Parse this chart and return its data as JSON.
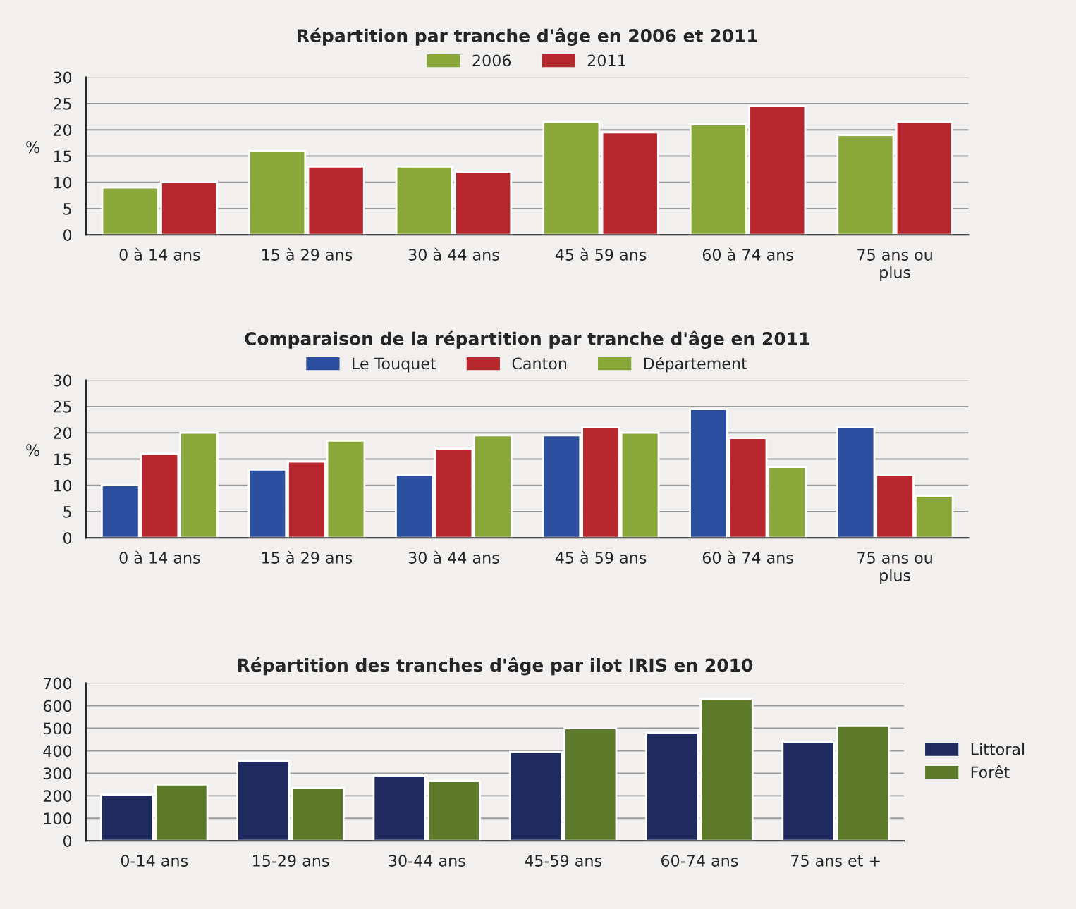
{
  "chart_data": [
    {
      "type": "bar",
      "title": "Répartition par tranche d'âge en 2006 et 2011",
      "ylabel": "%",
      "categories": [
        "0 à 14 ans",
        "15 à 29 ans",
        "30 à 44 ans",
        "45 à 59 ans",
        "60 à 74 ans",
        "75 ans ou\nplus"
      ],
      "series": [
        {
          "name": "2006",
          "color": "#8aa83a",
          "values": [
            9,
            16,
            13,
            21.5,
            21,
            19
          ]
        },
        {
          "name": "2011",
          "color": "#b8262e",
          "values": [
            10,
            13,
            12,
            19.5,
            24.5,
            21.5
          ]
        }
      ],
      "ylim": [
        0,
        30
      ],
      "yticks": [
        0,
        5,
        10,
        15,
        20,
        25,
        30
      ],
      "grid": "y",
      "legend": "top"
    },
    {
      "type": "bar",
      "title": "Comparaison de la répartition par tranche d'âge en 2011",
      "ylabel": "%",
      "categories": [
        "0 à 14 ans",
        "15 à 29 ans",
        "30 à 44 ans",
        "45 à 59 ans",
        "60 à 74 ans",
        "75 ans ou\nplus"
      ],
      "series": [
        {
          "name": "Le Touquet",
          "color": "#2c4e9e",
          "values": [
            10,
            13,
            12,
            19.5,
            24.5,
            21
          ]
        },
        {
          "name": "Canton",
          "color": "#b8262e",
          "values": [
            16,
            14.5,
            17,
            21,
            19,
            12
          ]
        },
        {
          "name": "Département",
          "color": "#8aa83a",
          "values": [
            20,
            18.5,
            19.5,
            20,
            13.5,
            8
          ]
        }
      ],
      "ylim": [
        0,
        30
      ],
      "yticks": [
        0,
        5,
        10,
        15,
        20,
        25,
        30
      ],
      "grid": "y",
      "legend": "top"
    },
    {
      "type": "bar",
      "title": "Répartition des tranches d'âge par ilot IRIS en 2010",
      "categories": [
        "0-14 ans",
        "15-29 ans",
        "30-44 ans",
        "45-59 ans",
        "60-74 ans",
        "75 ans et +"
      ],
      "series": [
        {
          "name": "Littoral",
          "color": "#1f2a5e",
          "values": [
            205,
            355,
            290,
            395,
            480,
            440
          ]
        },
        {
          "name": "Forêt",
          "color": "#5c7a2a",
          "values": [
            250,
            235,
            265,
            500,
            630,
            510
          ]
        }
      ],
      "ylim": [
        0,
        700
      ],
      "yticks": [
        0,
        100,
        200,
        300,
        400,
        500,
        600,
        700
      ],
      "grid": "y",
      "legend": "right"
    }
  ]
}
